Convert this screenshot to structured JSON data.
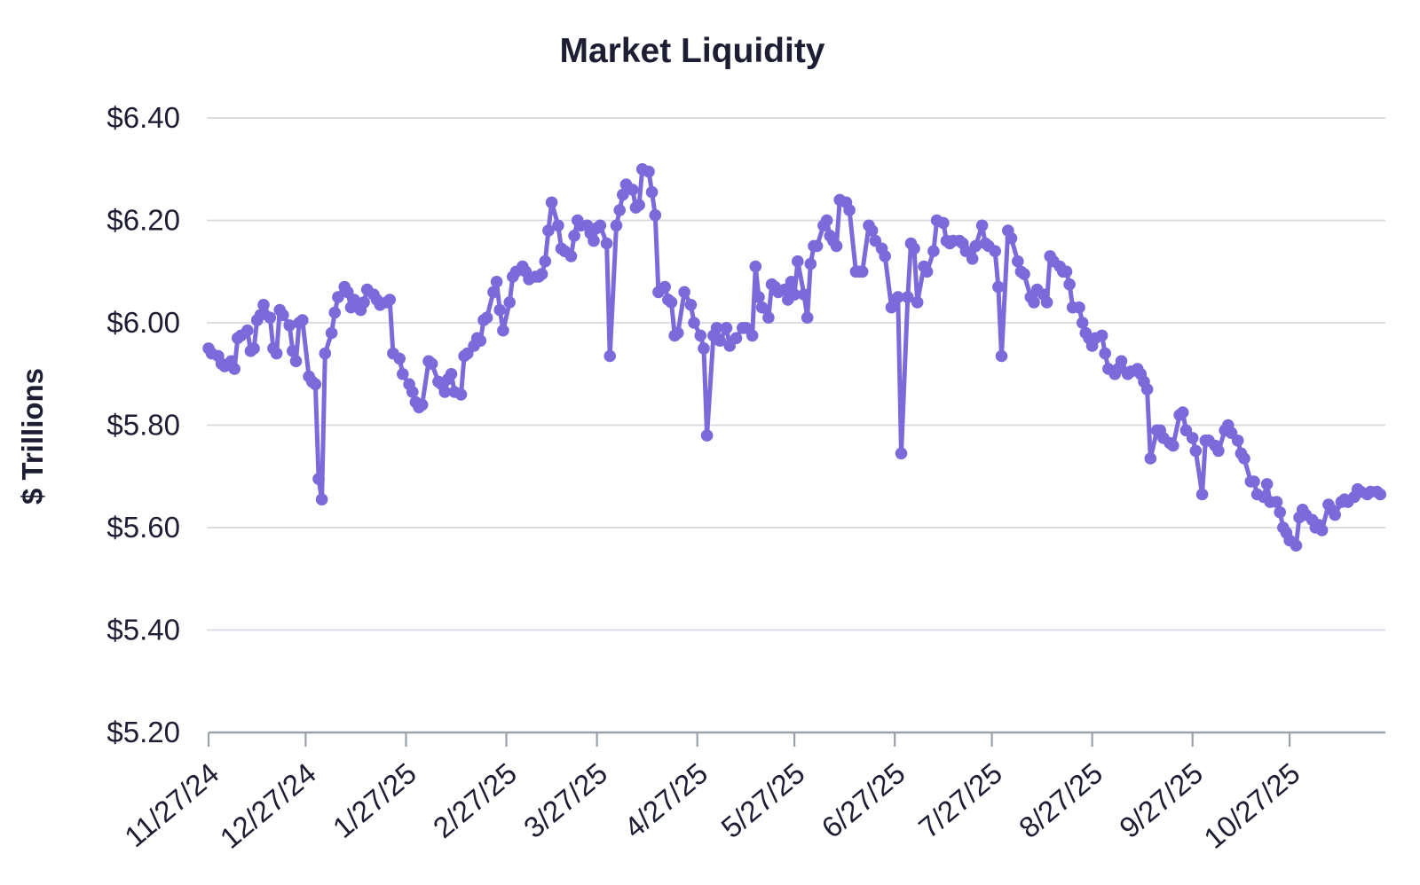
{
  "title": "Market Liquidity",
  "y_axis": {
    "label": "$ Trillions",
    "tick_labels": [
      "$6.40",
      "$6.20",
      "$6.00",
      "$5.80",
      "$5.60",
      "$5.40",
      "$5.20"
    ],
    "tick_values": [
      6.4,
      6.2,
      6.0,
      5.8,
      5.6,
      5.4,
      5.2
    ]
  },
  "x_axis": {
    "tick_labels": [
      "11/27/24",
      "12/27/24",
      "1/27/25",
      "2/27/25",
      "3/27/25",
      "4/27/25",
      "5/27/25",
      "6/27/25",
      "7/27/25",
      "8/27/25",
      "9/27/25",
      "10/27/25"
    ],
    "tick_days": [
      0,
      30,
      61,
      92,
      120,
      151,
      181,
      212,
      242,
      273,
      304,
      334
    ]
  },
  "colors": {
    "line": "#7c69da",
    "text": "#1d1d33",
    "grid": "#d7dae0",
    "axis": "#9aa1ab",
    "background": "#ffffff"
  },
  "chart_data": {
    "type": "line",
    "title": "Market Liquidity",
    "xlabel": "",
    "ylabel": "$ Trillions",
    "ylim": [
      5.2,
      6.4
    ],
    "grid": "horizontal",
    "legend": "none",
    "x_unit": "days since 11/27/2024",
    "x_start_label": "11/27/24",
    "x_end_label": "10/27/25",
    "series": [
      {
        "name": "Market Liquidity ($T)",
        "points": [
          [
            0,
            5.95
          ],
          [
            1,
            5.94
          ],
          [
            3,
            5.935
          ],
          [
            4,
            5.92
          ],
          [
            5,
            5.915
          ],
          [
            7,
            5.925
          ],
          [
            8,
            5.91
          ],
          [
            9,
            5.97
          ],
          [
            10,
            5.975
          ],
          [
            12,
            5.985
          ],
          [
            13,
            5.945
          ],
          [
            14,
            5.95
          ],
          [
            15,
            6.005
          ],
          [
            16,
            6.015
          ],
          [
            17,
            6.035
          ],
          [
            19,
            6.01
          ],
          [
            20,
            5.95
          ],
          [
            21,
            5.94
          ],
          [
            22,
            6.025
          ],
          [
            23,
            6.015
          ],
          [
            25,
            5.995
          ],
          [
            26,
            5.945
          ],
          [
            27,
            5.925
          ],
          [
            28,
            6.0
          ],
          [
            29,
            6.005
          ],
          [
            31,
            5.895
          ],
          [
            32,
            5.885
          ],
          [
            33,
            5.88
          ],
          [
            34,
            5.695
          ],
          [
            35,
            5.655
          ],
          [
            36,
            5.94
          ],
          [
            38,
            5.98
          ],
          [
            39,
            6.02
          ],
          [
            40,
            6.05
          ],
          [
            42,
            6.07
          ],
          [
            43,
            6.06
          ],
          [
            44,
            6.03
          ],
          [
            45,
            6.045
          ],
          [
            47,
            6.025
          ],
          [
            48,
            6.04
          ],
          [
            49,
            6.065
          ],
          [
            51,
            6.055
          ],
          [
            52,
            6.045
          ],
          [
            53,
            6.035
          ],
          [
            55,
            6.04
          ],
          [
            56,
            6.045
          ],
          [
            57,
            5.94
          ],
          [
            59,
            5.93
          ],
          [
            60,
            5.9
          ],
          [
            62,
            5.88
          ],
          [
            63,
            5.865
          ],
          [
            64,
            5.845
          ],
          [
            65,
            5.835
          ],
          [
            66,
            5.84
          ],
          [
            68,
            5.925
          ],
          [
            69,
            5.92
          ],
          [
            71,
            5.885
          ],
          [
            72,
            5.88
          ],
          [
            73,
            5.865
          ],
          [
            74,
            5.89
          ],
          [
            75,
            5.9
          ],
          [
            76,
            5.865
          ],
          [
            78,
            5.86
          ],
          [
            79,
            5.935
          ],
          [
            80,
            5.94
          ],
          [
            82,
            5.955
          ],
          [
            83,
            5.97
          ],
          [
            84,
            5.965
          ],
          [
            85,
            6.005
          ],
          [
            86,
            6.01
          ],
          [
            88,
            6.06
          ],
          [
            89,
            6.08
          ],
          [
            90,
            6.025
          ],
          [
            91,
            5.985
          ],
          [
            93,
            6.04
          ],
          [
            94,
            6.09
          ],
          [
            95,
            6.1
          ],
          [
            97,
            6.11
          ],
          [
            98,
            6.1
          ],
          [
            99,
            6.085
          ],
          [
            101,
            6.09
          ],
          [
            102,
            6.09
          ],
          [
            103,
            6.095
          ],
          [
            104,
            6.12
          ],
          [
            105,
            6.18
          ],
          [
            106,
            6.235
          ],
          [
            108,
            6.19
          ],
          [
            109,
            6.145
          ],
          [
            110,
            6.14
          ],
          [
            112,
            6.13
          ],
          [
            113,
            6.17
          ],
          [
            114,
            6.2
          ],
          [
            115,
            6.19
          ],
          [
            117,
            6.19
          ],
          [
            118,
            6.175
          ],
          [
            119,
            6.16
          ],
          [
            120,
            6.185
          ],
          [
            121,
            6.19
          ],
          [
            123,
            6.155
          ],
          [
            124,
            5.935
          ],
          [
            126,
            6.19
          ],
          [
            127,
            6.22
          ],
          [
            128,
            6.25
          ],
          [
            129,
            6.27
          ],
          [
            131,
            6.26
          ],
          [
            132,
            6.225
          ],
          [
            133,
            6.23
          ],
          [
            134,
            6.3
          ],
          [
            136,
            6.295
          ],
          [
            137,
            6.255
          ],
          [
            138,
            6.21
          ],
          [
            139,
            6.06
          ],
          [
            141,
            6.07
          ],
          [
            142,
            6.045
          ],
          [
            143,
            6.04
          ],
          [
            144,
            5.975
          ],
          [
            145,
            5.98
          ],
          [
            147,
            6.06
          ],
          [
            149,
            6.035
          ],
          [
            150,
            6.0
          ],
          [
            152,
            5.975
          ],
          [
            153,
            5.95
          ],
          [
            154,
            5.78
          ],
          [
            156,
            5.975
          ],
          [
            157,
            5.99
          ],
          [
            158,
            5.965
          ],
          [
            160,
            5.99
          ],
          [
            161,
            5.955
          ],
          [
            163,
            5.97
          ],
          [
            165,
            5.99
          ],
          [
            166,
            5.99
          ],
          [
            168,
            5.975
          ],
          [
            169,
            6.11
          ],
          [
            170,
            6.05
          ],
          [
            171,
            6.03
          ],
          [
            173,
            6.01
          ],
          [
            174,
            6.075
          ],
          [
            175,
            6.07
          ],
          [
            176,
            6.06
          ],
          [
            178,
            6.065
          ],
          [
            179,
            6.045
          ],
          [
            180,
            6.08
          ],
          [
            181,
            6.055
          ],
          [
            182,
            6.12
          ],
          [
            184,
            6.055
          ],
          [
            185,
            6.01
          ],
          [
            186,
            6.115
          ],
          [
            187,
            6.15
          ],
          [
            188,
            6.15
          ],
          [
            190,
            6.19
          ],
          [
            191,
            6.2
          ],
          [
            192,
            6.17
          ],
          [
            193,
            6.16
          ],
          [
            194,
            6.15
          ],
          [
            195,
            6.24
          ],
          [
            197,
            6.235
          ],
          [
            198,
            6.22
          ],
          [
            200,
            6.1
          ],
          [
            201,
            6.1
          ],
          [
            202,
            6.1
          ],
          [
            204,
            6.19
          ],
          [
            205,
            6.18
          ],
          [
            206,
            6.16
          ],
          [
            208,
            6.145
          ],
          [
            209,
            6.13
          ],
          [
            211,
            6.03
          ],
          [
            212,
            6.045
          ],
          [
            213,
            6.05
          ],
          [
            214,
            5.745
          ],
          [
            216,
            6.05
          ],
          [
            217,
            6.155
          ],
          [
            218,
            6.145
          ],
          [
            219,
            6.04
          ],
          [
            221,
            6.11
          ],
          [
            222,
            6.1
          ],
          [
            224,
            6.14
          ],
          [
            225,
            6.2
          ],
          [
            227,
            6.195
          ],
          [
            228,
            6.16
          ],
          [
            229,
            6.155
          ],
          [
            230,
            6.16
          ],
          [
            232,
            6.16
          ],
          [
            233,
            6.155
          ],
          [
            234,
            6.14
          ],
          [
            236,
            6.125
          ],
          [
            237,
            6.15
          ],
          [
            239,
            6.19
          ],
          [
            240,
            6.155
          ],
          [
            241,
            6.15
          ],
          [
            243,
            6.14
          ],
          [
            244,
            6.07
          ],
          [
            245,
            5.935
          ],
          [
            247,
            6.18
          ],
          [
            248,
            6.165
          ],
          [
            250,
            6.12
          ],
          [
            251,
            6.1
          ],
          [
            252,
            6.095
          ],
          [
            254,
            6.05
          ],
          [
            255,
            6.04
          ],
          [
            256,
            6.065
          ],
          [
            258,
            6.055
          ],
          [
            259,
            6.04
          ],
          [
            260,
            6.13
          ],
          [
            261,
            6.12
          ],
          [
            263,
            6.11
          ],
          [
            264,
            6.1
          ],
          [
            265,
            6.1
          ],
          [
            266,
            6.075
          ],
          [
            267,
            6.03
          ],
          [
            269,
            6.03
          ],
          [
            270,
            6.0
          ],
          [
            271,
            5.98
          ],
          [
            272,
            5.97
          ],
          [
            273,
            5.955
          ],
          [
            274,
            5.97
          ],
          [
            276,
            5.975
          ],
          [
            277,
            5.94
          ],
          [
            278,
            5.91
          ],
          [
            280,
            5.9
          ],
          [
            281,
            5.91
          ],
          [
            282,
            5.925
          ],
          [
            284,
            5.9
          ],
          [
            285,
            5.905
          ],
          [
            287,
            5.91
          ],
          [
            288,
            5.9
          ],
          [
            289,
            5.885
          ],
          [
            290,
            5.87
          ],
          [
            291,
            5.735
          ],
          [
            293,
            5.79
          ],
          [
            294,
            5.79
          ],
          [
            295,
            5.775
          ],
          [
            297,
            5.765
          ],
          [
            298,
            5.76
          ],
          [
            300,
            5.82
          ],
          [
            301,
            5.825
          ],
          [
            302,
            5.79
          ],
          [
            304,
            5.775
          ],
          [
            305,
            5.75
          ],
          [
            307,
            5.665
          ],
          [
            308,
            5.77
          ],
          [
            309,
            5.77
          ],
          [
            311,
            5.76
          ],
          [
            312,
            5.75
          ],
          [
            314,
            5.79
          ],
          [
            315,
            5.8
          ],
          [
            316,
            5.785
          ],
          [
            318,
            5.77
          ],
          [
            319,
            5.745
          ],
          [
            320,
            5.735
          ],
          [
            322,
            5.69
          ],
          [
            323,
            5.69
          ],
          [
            324,
            5.665
          ],
          [
            326,
            5.66
          ],
          [
            327,
            5.685
          ],
          [
            328,
            5.65
          ],
          [
            330,
            5.65
          ],
          [
            331,
            5.63
          ],
          [
            332,
            5.6
          ],
          [
            333,
            5.59
          ],
          [
            334,
            5.575
          ],
          [
            336,
            5.565
          ],
          [
            337,
            5.62
          ],
          [
            338,
            5.635
          ],
          [
            339,
            5.625
          ],
          [
            341,
            5.615
          ],
          [
            342,
            5.6
          ],
          [
            343,
            5.605
          ],
          [
            344,
            5.595
          ],
          [
            346,
            5.645
          ],
          [
            347,
            5.635
          ],
          [
            348,
            5.625
          ],
          [
            350,
            5.65
          ],
          [
            351,
            5.655
          ],
          [
            352,
            5.65
          ],
          [
            354,
            5.66
          ],
          [
            355,
            5.675
          ],
          [
            356,
            5.67
          ],
          [
            358,
            5.665
          ],
          [
            359,
            5.67
          ],
          [
            361,
            5.67
          ],
          [
            362,
            5.665
          ]
        ]
      }
    ]
  }
}
